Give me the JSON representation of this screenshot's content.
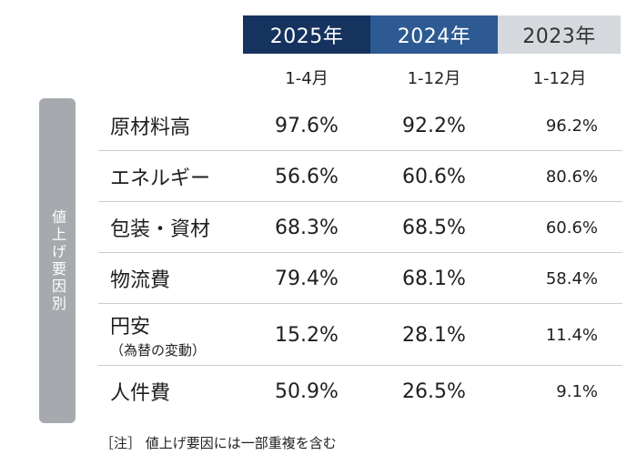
{
  "chart_data": {
    "type": "table",
    "row_group_label": "値上げ要因別",
    "columns": [
      {
        "year": "2025年",
        "period": "1-4月",
        "color": "#16325e"
      },
      {
        "year": "2024年",
        "period": "1-12月",
        "color": "#2d5a93"
      },
      {
        "year": "2023年",
        "period": "1-12月",
        "color": "#d5d9de"
      }
    ],
    "rows": [
      {
        "label": "原材料高",
        "sub": "",
        "values": [
          "97.6%",
          "92.2%",
          "96.2%"
        ]
      },
      {
        "label": "エネルギー",
        "sub": "",
        "values": [
          "56.6%",
          "60.6%",
          "80.6%"
        ]
      },
      {
        "label": "包装・資材",
        "sub": "",
        "values": [
          "68.3%",
          "68.5%",
          "60.6%"
        ]
      },
      {
        "label": "物流費",
        "sub": "",
        "values": [
          "79.4%",
          "68.1%",
          "58.4%"
        ]
      },
      {
        "label": "円安",
        "sub": "（為替の変動）",
        "values": [
          "15.2%",
          "28.1%",
          "11.4%"
        ]
      },
      {
        "label": "人件費",
        "sub": "",
        "values": [
          "50.9%",
          "26.5%",
          "9.1%"
        ]
      }
    ],
    "note": "［注］ 値上げ要因には一部重複を含む"
  }
}
